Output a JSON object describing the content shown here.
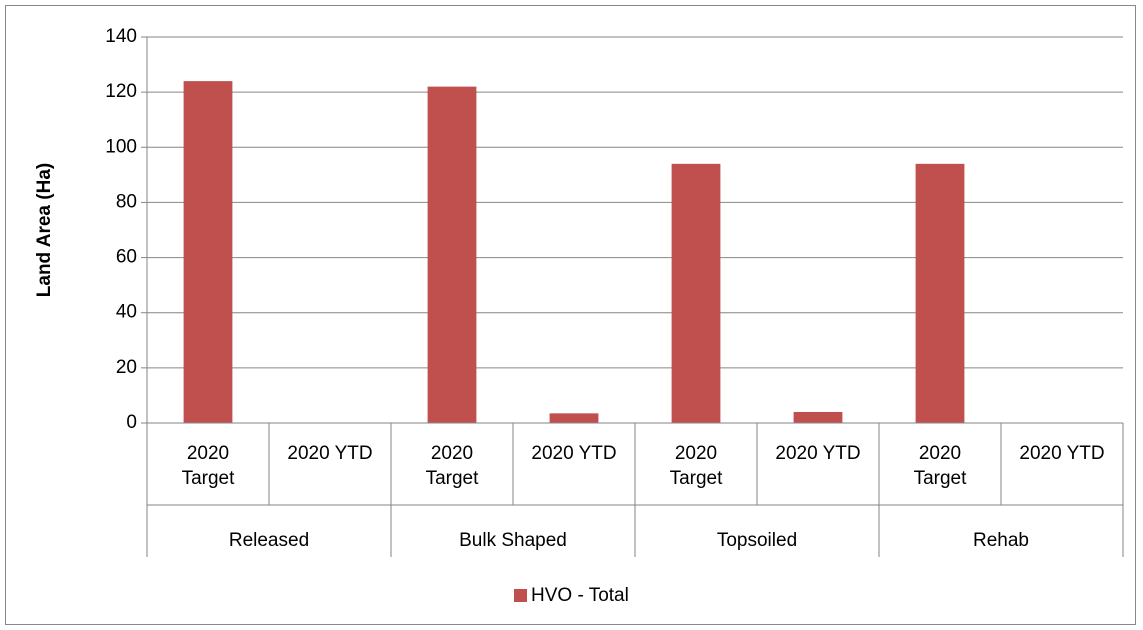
{
  "chart_data": {
    "type": "bar",
    "y_label": "Land Area (Ha)",
    "categories": [
      "2020 Target",
      "2020 YTD",
      "2020 Target",
      "2020 YTD",
      "2020 Target",
      "2020 YTD",
      "2020 Target",
      "2020 YTD"
    ],
    "groups": [
      "Released",
      "Bulk Shaped",
      "Topsoiled",
      "Rehab"
    ],
    "series": [
      {
        "name": "HVO - Total",
        "color": "#c0504d",
        "values": [
          124,
          0,
          122,
          3.5,
          94,
          4,
          94,
          0
        ]
      }
    ],
    "ylim": [
      0,
      140
    ],
    "yticks": [
      0,
      20,
      40,
      60,
      80,
      100,
      120,
      140
    ],
    "grid": true,
    "legend": "bottom"
  }
}
